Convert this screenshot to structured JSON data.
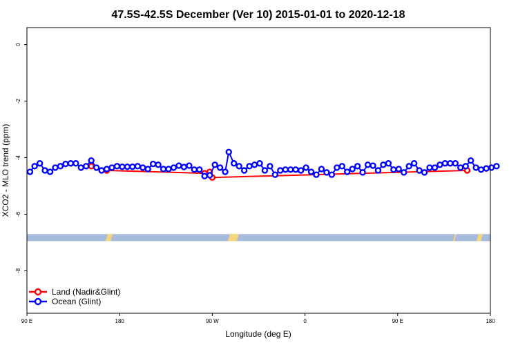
{
  "chart_data": {
    "type": "line",
    "title": "47.5S-42.5S December (Ver 10)   2015-01-01 to 2020-12-18",
    "xlabel": "Longitude (deg E)",
    "ylabel": "XCO2 - MLO trend (ppm)",
    "x_ticks": [
      {
        "value": 90,
        "label": "90 E"
      },
      {
        "value": 180,
        "label": "180"
      },
      {
        "value": 270,
        "label": "90 W"
      },
      {
        "value": 360,
        "label": "0"
      },
      {
        "value": 450,
        "label": "90 E"
      },
      {
        "value": 540,
        "label": "180"
      }
    ],
    "y_ticks": [
      {
        "value": 0,
        "label": "0"
      },
      {
        "value": -2,
        "label": "-2"
      },
      {
        "value": -4,
        "label": "-4"
      },
      {
        "value": -6,
        "label": "-6"
      },
      {
        "value": -8,
        "label": "-8"
      }
    ],
    "xlim": [
      90,
      540
    ],
    "ylim": [
      -9.5,
      0.6
    ],
    "grid": false,
    "legend_position": "bottom-left",
    "land_mask": {
      "y_range": [
        -6.95,
        -6.7
      ],
      "ocean_color": "#A7BCDC",
      "land_color": "#F5D67A",
      "land_segments": [
        {
          "x": 147,
          "y": -6.7
        },
        {
          "x": 148,
          "y": -6.75
        },
        [
          [
            "lon0",
            168
          ],
          [
            "lon1",
            176
          ]
        ],
        [
          [
            269
          ],
          [
            286
          ]
        ],
        [
          [
            573
          ],
          [
            578
          ]
        ],
        [
          [
            595
          ],
          [
            604
          ]
        ]
      ]
    },
    "series": [
      {
        "name": "Land (Nadir&Glint)",
        "color": "#FF0000",
        "points": [
          [
            152.5,
            -4.3
          ],
          [
            167.5,
            -4.45
          ],
          [
            262.5,
            -4.55
          ],
          [
            267.5,
            -4.5
          ],
          [
            270,
            -4.7
          ],
          [
            517.5,
            -4.45
          ]
        ]
      },
      {
        "name": "Ocean (Glint)",
        "color": "#0000FF",
        "points": [
          [
            93,
            -4.5
          ],
          [
            97.5,
            -4.3
          ],
          [
            102.5,
            -4.2
          ],
          [
            107.5,
            -4.45
          ],
          [
            112.5,
            -4.5
          ],
          [
            117.5,
            -4.35
          ],
          [
            122.5,
            -4.3
          ],
          [
            127.5,
            -4.22
          ],
          [
            132.5,
            -4.2
          ],
          [
            137.5,
            -4.2
          ],
          [
            142.5,
            -4.35
          ],
          [
            147.5,
            -4.3
          ],
          [
            152.5,
            -4.1
          ],
          [
            157.5,
            -4.35
          ],
          [
            162.5,
            -4.45
          ],
          [
            167.5,
            -4.4
          ],
          [
            172.5,
            -4.35
          ],
          [
            177.5,
            -4.3
          ],
          [
            182.5,
            -4.32
          ],
          [
            187.5,
            -4.32
          ],
          [
            192.5,
            -4.32
          ],
          [
            197.5,
            -4.3
          ],
          [
            202.5,
            -4.35
          ],
          [
            207.5,
            -4.4
          ],
          [
            212.5,
            -4.22
          ],
          [
            217.5,
            -4.25
          ],
          [
            222.5,
            -4.4
          ],
          [
            227.5,
            -4.4
          ],
          [
            232.5,
            -4.35
          ],
          [
            237.5,
            -4.28
          ],
          [
            242.5,
            -4.33
          ],
          [
            247.5,
            -4.28
          ],
          [
            252.5,
            -4.42
          ],
          [
            257.5,
            -4.42
          ],
          [
            262.5,
            -4.65
          ],
          [
            267.5,
            -4.62
          ],
          [
            272.5,
            -4.25
          ],
          [
            277.5,
            -4.35
          ],
          [
            282.5,
            -4.5
          ],
          [
            286,
            -3.8
          ],
          [
            291,
            -4.2
          ],
          [
            296,
            -4.3
          ],
          [
            301,
            -4.45
          ],
          [
            306,
            -4.3
          ],
          [
            311,
            -4.25
          ],
          [
            316,
            -4.2
          ],
          [
            321,
            -4.45
          ],
          [
            326,
            -4.3
          ],
          [
            331,
            -4.6
          ],
          [
            336,
            -4.45
          ],
          [
            341,
            -4.42
          ],
          [
            346,
            -4.42
          ],
          [
            351,
            -4.42
          ],
          [
            356,
            -4.45
          ],
          [
            361,
            -4.35
          ],
          [
            366,
            -4.5
          ],
          [
            371,
            -4.6
          ],
          [
            376,
            -4.4
          ],
          [
            381,
            -4.52
          ],
          [
            386,
            -4.6
          ],
          [
            391,
            -4.35
          ],
          [
            396,
            -4.3
          ],
          [
            401,
            -4.5
          ],
          [
            406,
            -4.4
          ],
          [
            411,
            -4.3
          ],
          [
            416,
            -4.52
          ],
          [
            421,
            -4.25
          ],
          [
            426,
            -4.28
          ],
          [
            431,
            -4.45
          ],
          [
            436,
            -4.25
          ],
          [
            441,
            -4.2
          ],
          [
            446,
            -4.42
          ],
          [
            451,
            -4.4
          ],
          [
            456,
            -4.52
          ],
          [
            461,
            -4.3
          ],
          [
            466,
            -4.2
          ],
          [
            471,
            -4.45
          ],
          [
            476,
            -4.52
          ],
          [
            481,
            -4.35
          ],
          [
            486,
            -4.35
          ],
          [
            491,
            -4.25
          ],
          [
            496,
            -4.2
          ],
          [
            501,
            -4.2
          ],
          [
            506,
            -4.2
          ],
          [
            511,
            -4.35
          ],
          [
            516,
            -4.3
          ],
          [
            521,
            -4.1
          ],
          [
            526,
            -4.35
          ],
          [
            531,
            -4.42
          ],
          [
            536,
            -4.38
          ],
          [
            541,
            -4.35
          ],
          [
            546,
            -4.3
          ]
        ]
      }
    ]
  }
}
